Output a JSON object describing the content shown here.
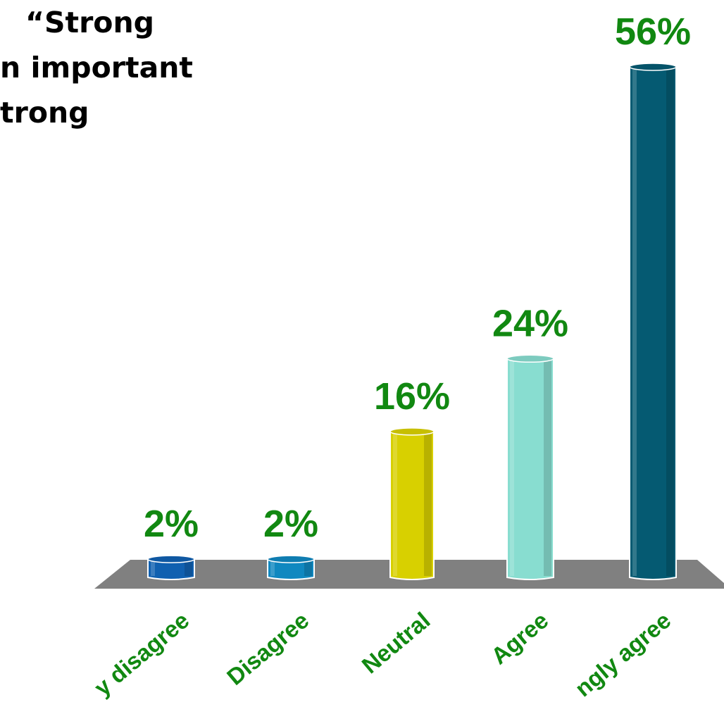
{
  "title_lines": [
    "“Strong",
    "n important",
    "trong"
  ],
  "colors": {
    "value_text": "#118811",
    "category_text": "#118811",
    "floor": "#808080",
    "strongly_disagree": "#1060b0",
    "disagree": "#1088c0",
    "neutral": "#d8d000",
    "agree": "#88ddd0",
    "strongly_agree": "#055a72"
  },
  "chart_data": {
    "type": "bar",
    "categories": [
      "y disagree",
      "Disagree",
      "Neutral",
      "Agree",
      "ngly agree"
    ],
    "values": [
      2,
      2,
      16,
      24,
      56
    ],
    "value_labels": [
      "2%",
      "2%",
      "16%",
      "24%",
      "56%"
    ],
    "unit": "%",
    "ylim": [
      0,
      56
    ],
    "grid": false,
    "legend": "none"
  }
}
